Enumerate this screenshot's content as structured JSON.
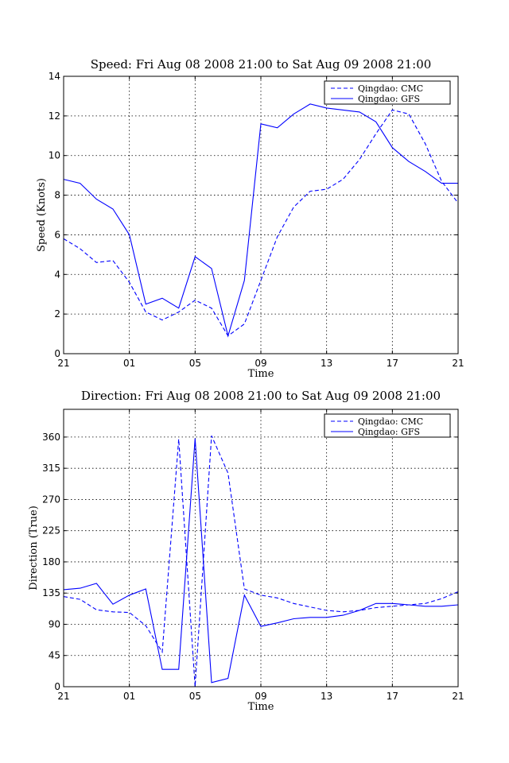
{
  "chart_data": [
    {
      "type": "line",
      "title": "Speed: Fri Aug 08 2008 21:00 to Sat Aug 09 2008 21:00",
      "xlabel": "Time",
      "ylabel": "Speed (Knots)",
      "x_tick_labels": [
        "21",
        "01",
        "05",
        "09",
        "13",
        "17",
        "21"
      ],
      "y_ticks": [
        0,
        2,
        4,
        6,
        8,
        10,
        12,
        14
      ],
      "ylim": [
        0,
        14
      ],
      "grid": true,
      "legend_position": "top-right",
      "color": "#0000ff",
      "x_hours": [
        0,
        1,
        2,
        3,
        4,
        5,
        6,
        7,
        8,
        9,
        10,
        11,
        12,
        13,
        14,
        15,
        16,
        17,
        18,
        19,
        20,
        21,
        22,
        23,
        24
      ],
      "series": [
        {
          "name": "Qingdao: CMC",
          "style": "dashed",
          "values": [
            5.8,
            5.3,
            4.6,
            4.7,
            3.6,
            2.1,
            1.7,
            2.1,
            2.7,
            2.3,
            0.9,
            1.5,
            3.7,
            5.9,
            7.4,
            8.2,
            8.3,
            8.8,
            9.8,
            11.1,
            12.3,
            12.1,
            10.6,
            8.7,
            7.6
          ]
        },
        {
          "name": "Qingdao: GFS",
          "style": "solid",
          "values": [
            8.8,
            8.6,
            7.8,
            7.3,
            6.0,
            2.5,
            2.8,
            2.3,
            4.9,
            4.3,
            0.9,
            3.7,
            11.6,
            11.4,
            12.1,
            12.6,
            12.4,
            12.3,
            12.2,
            11.7,
            10.4,
            9.7,
            9.2,
            8.6,
            8.6
          ]
        }
      ]
    },
    {
      "type": "line",
      "title": "Direction: Fri Aug 08 2008 21:00 to Sat Aug 09 2008 21:00",
      "xlabel": "Time",
      "ylabel": "Direction (True)",
      "x_tick_labels": [
        "21",
        "01",
        "05",
        "09",
        "13",
        "17",
        "21"
      ],
      "y_ticks": [
        0,
        45,
        90,
        135,
        180,
        225,
        270,
        315,
        360
      ],
      "ylim": [
        0,
        400
      ],
      "grid": true,
      "legend_position": "top-right",
      "color": "#0000ff",
      "x_hours": [
        0,
        1,
        2,
        3,
        4,
        5,
        6,
        7,
        8,
        9,
        10,
        11,
        12,
        13,
        14,
        15,
        16,
        17,
        18,
        19,
        20,
        21,
        22,
        23,
        24
      ],
      "series": [
        {
          "name": "Qingdao: CMC",
          "style": "dashed",
          "values": [
            130,
            126,
            111,
            108,
            107,
            88,
            50,
            357,
            0,
            362,
            308,
            141,
            132,
            128,
            120,
            115,
            110,
            108,
            110,
            114,
            116,
            118,
            120,
            127,
            137
          ]
        },
        {
          "name": "Qingdao: GFS",
          "style": "solid",
          "values": [
            140,
            142,
            149,
            119,
            132,
            141,
            25,
            25,
            358,
            6,
            12,
            132,
            87,
            92,
            98,
            100,
            100,
            103,
            110,
            120,
            120,
            118,
            116,
            116,
            118
          ]
        }
      ]
    }
  ]
}
